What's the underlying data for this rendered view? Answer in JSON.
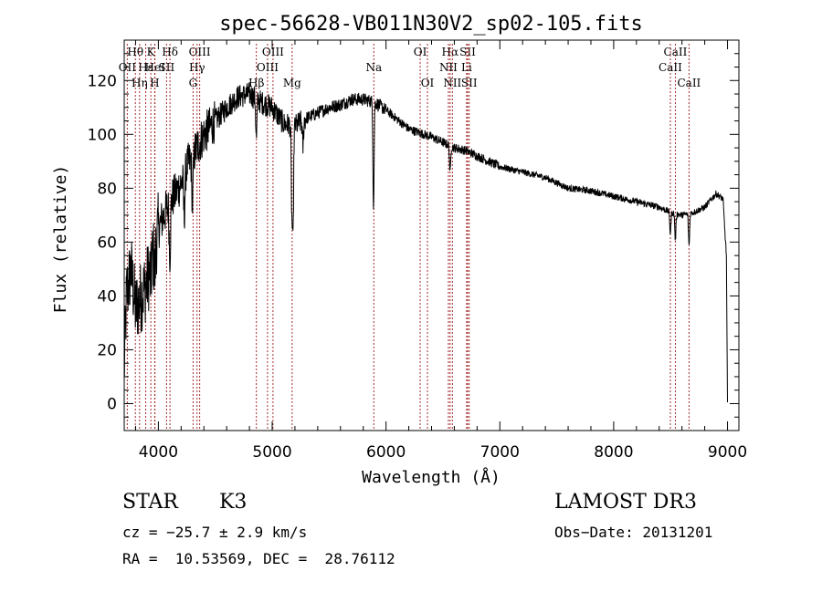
{
  "chart_data": {
    "type": "line",
    "title": "spec-56628-VB011N30V2_sp02-105.fits",
    "xlabel": "Wavelength (Å)",
    "ylabel": "Flux (relative)",
    "xlim": [
      3700,
      9100
    ],
    "ylim": [
      -10,
      135
    ],
    "x_ticks": [
      4000,
      5000,
      6000,
      7000,
      8000,
      9000
    ],
    "y_ticks": [
      0,
      20,
      40,
      60,
      80,
      100,
      120
    ],
    "grid": false,
    "line_color": "#000000",
    "marker_color": "#a52a2a",
    "spectrum_anchors": [
      [
        3700,
        12
      ],
      [
        3720,
        40
      ],
      [
        3760,
        50
      ],
      [
        3800,
        35
      ],
      [
        3850,
        40
      ],
      [
        3900,
        45
      ],
      [
        3950,
        55
      ],
      [
        4000,
        65
      ],
      [
        4050,
        70
      ],
      [
        4100,
        75
      ],
      [
        4150,
        78
      ],
      [
        4200,
        82
      ],
      [
        4250,
        88
      ],
      [
        4300,
        92
      ],
      [
        4400,
        100
      ],
      [
        4500,
        105
      ],
      [
        4600,
        110
      ],
      [
        4700,
        114
      ],
      [
        4800,
        115
      ],
      [
        4900,
        112
      ],
      [
        5000,
        110
      ],
      [
        5100,
        104
      ],
      [
        5200,
        103
      ],
      [
        5300,
        106
      ],
      [
        5400,
        108
      ],
      [
        5500,
        110
      ],
      [
        5600,
        111
      ],
      [
        5700,
        113
      ],
      [
        5800,
        113
      ],
      [
        5900,
        112
      ],
      [
        6000,
        109
      ],
      [
        6200,
        102
      ],
      [
        6400,
        99
      ],
      [
        6500,
        97
      ],
      [
        6600,
        95
      ],
      [
        6700,
        94
      ],
      [
        6800,
        92
      ],
      [
        7000,
        88
      ],
      [
        7200,
        86
      ],
      [
        7400,
        84
      ],
      [
        7600,
        80
      ],
      [
        7800,
        79
      ],
      [
        8000,
        77
      ],
      [
        8200,
        75
      ],
      [
        8400,
        73
      ],
      [
        8500,
        71
      ],
      [
        8600,
        70
      ],
      [
        8700,
        71
      ],
      [
        8800,
        73
      ],
      [
        8900,
        78
      ],
      [
        8960,
        76
      ],
      [
        8990,
        55
      ],
      [
        9000,
        0
      ]
    ],
    "absorption_dips": [
      [
        3934,
        6
      ],
      [
        3969,
        10
      ],
      [
        4101,
        20
      ],
      [
        4227,
        15
      ],
      [
        4300,
        18
      ],
      [
        4861,
        15
      ],
      [
        5172,
        30
      ],
      [
        5183,
        40
      ],
      [
        5270,
        10
      ],
      [
        5890,
        38
      ],
      [
        6563,
        10
      ],
      [
        8498,
        8
      ],
      [
        8542,
        10
      ],
      [
        8662,
        12
      ]
    ],
    "lines": [
      {
        "label": "Hθ",
        "x": 3798,
        "row": 0
      },
      {
        "label": "K",
        "x": 3934,
        "row": 0
      },
      {
        "label": "Hδ",
        "x": 4102,
        "row": 0
      },
      {
        "label": "OII",
        "x": 3727,
        "row": 1
      },
      {
        "label": "Hε",
        "x": 3889,
        "row": 1
      },
      {
        "label": "HeI",
        "x": 3970,
        "row": 1
      },
      {
        "label": "SII",
        "x": 4072,
        "row": 1
      },
      {
        "label": "Hη",
        "x": 3835,
        "row": 2
      },
      {
        "label": "H",
        "x": 3968,
        "row": 2
      },
      {
        "label": "OIII",
        "x": 4363,
        "row": 0
      },
      {
        "label": "Hγ",
        "x": 4340,
        "row": 1
      },
      {
        "label": "G",
        "x": 4305,
        "row": 2
      },
      {
        "label": "OIII",
        "x": 5007,
        "row": 0
      },
      {
        "label": "OIII",
        "x": 4959,
        "row": 1
      },
      {
        "label": "Hβ",
        "x": 4861,
        "row": 2
      },
      {
        "label": "Mg",
        "x": 5175,
        "row": 2
      },
      {
        "label": "Na",
        "x": 5893,
        "row": 1
      },
      {
        "label": "OI",
        "x": 6300,
        "row": 0
      },
      {
        "label": "OI",
        "x": 6364,
        "row": 2
      },
      {
        "label": "Hα",
        "x": 6563,
        "row": 0
      },
      {
        "label": "NII",
        "x": 6548,
        "row": 1
      },
      {
        "label": "NII",
        "x": 6583,
        "row": 2
      },
      {
        "label": "SII",
        "x": 6717,
        "row": 0
      },
      {
        "label": "Li",
        "x": 6708,
        "row": 1
      },
      {
        "label": "SII",
        "x": 6731,
        "row": 2
      },
      {
        "label": "CaII",
        "x": 8542,
        "row": 0
      },
      {
        "label": "CaII",
        "x": 8498,
        "row": 1
      },
      {
        "label": "CaII",
        "x": 8662,
        "row": 2
      }
    ]
  },
  "info": {
    "object_class": "STAR",
    "subclass": "K3",
    "survey": "LAMOST DR3",
    "redshift": "cz = −25.7 ± 2.9 km/s",
    "obs_date": "Obs−Date: 20131201",
    "coords": "RA =  10.53569, DEC =  28.76112"
  }
}
